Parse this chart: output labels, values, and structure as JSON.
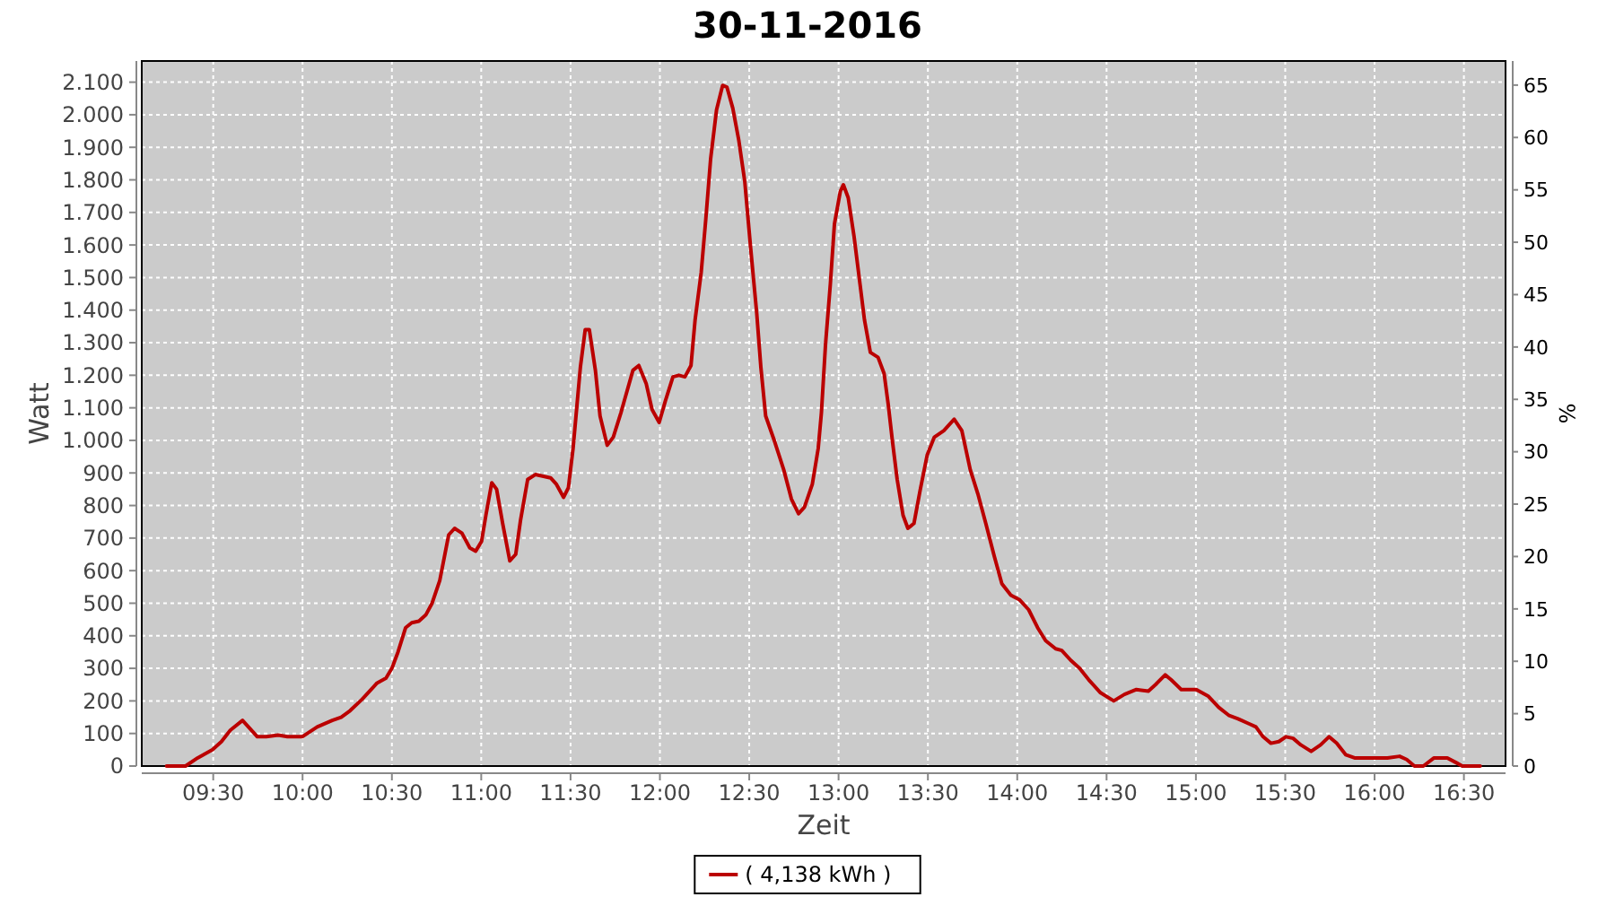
{
  "chart_data": {
    "type": "line",
    "title": "30-11-2016",
    "xlabel": "Zeit",
    "ylabel": "Watt",
    "y2label": "%",
    "xlim": [
      9.1,
      16.733
    ],
    "xticks": [
      {
        "value": 9.5,
        "label": "09:30"
      },
      {
        "value": 10,
        "label": "10:00"
      },
      {
        "value": 10.5,
        "label": "10:30"
      },
      {
        "value": 11,
        "label": "11:00"
      },
      {
        "value": 11.5,
        "label": "11:30"
      },
      {
        "value": 12,
        "label": "12:00"
      },
      {
        "value": 12.5,
        "label": "12:30"
      },
      {
        "value": 13,
        "label": "13:00"
      },
      {
        "value": 13.5,
        "label": "13:30"
      },
      {
        "value": 14,
        "label": "14:00"
      },
      {
        "value": 14.5,
        "label": "14:30"
      },
      {
        "value": 15,
        "label": "15:00"
      },
      {
        "value": 15.5,
        "label": "15:30"
      },
      {
        "value": 16,
        "label": "16:00"
      },
      {
        "value": 16.5,
        "label": "16:30"
      }
    ],
    "ylim": [
      0,
      2165
    ],
    "yticks": [
      0,
      100,
      200,
      300,
      400,
      500,
      600,
      700,
      800,
      900,
      {
        "value": 1000,
        "label": "1.000"
      },
      {
        "value": 1100,
        "label": "1.100"
      },
      {
        "value": 1200,
        "label": "1.200"
      },
      {
        "value": 1300,
        "label": "1.300"
      },
      {
        "value": 1400,
        "label": "1.400"
      },
      {
        "value": 1500,
        "label": "1.500"
      },
      {
        "value": 1600,
        "label": "1.600"
      },
      {
        "value": 1700,
        "label": "1.700"
      },
      {
        "value": 1800,
        "label": "1.800"
      },
      {
        "value": 1900,
        "label": "1.900"
      },
      {
        "value": 2000,
        "label": "2.000"
      },
      {
        "value": 2100,
        "label": "2.100"
      }
    ],
    "y2lim": [
      0,
      67.3
    ],
    "y2ticks": [
      0,
      5,
      10,
      15,
      20,
      25,
      30,
      35,
      40,
      45,
      50,
      55,
      60,
      65
    ],
    "grid": true,
    "legend": "bottom",
    "series": [
      {
        "name": "( 4,138 kWh )",
        "color": "#bb0000",
        "x": [
          9.239,
          9.345,
          9.413,
          9.496,
          9.546,
          9.596,
          9.664,
          9.747,
          9.797,
          9.864,
          9.915,
          9.998,
          10.082,
          10.166,
          10.216,
          10.266,
          10.333,
          10.384,
          10.417,
          10.467,
          10.5,
          10.534,
          10.577,
          10.611,
          10.651,
          10.691,
          10.725,
          10.768,
          10.818,
          10.851,
          10.892,
          10.936,
          10.969,
          11.002,
          11.026,
          11.059,
          11.086,
          11.12,
          11.16,
          11.193,
          11.22,
          11.26,
          11.303,
          11.388,
          11.421,
          11.461,
          11.488,
          11.514,
          11.555,
          11.582,
          11.605,
          11.639,
          11.665,
          11.705,
          11.739,
          11.782,
          11.805,
          11.849,
          11.882,
          11.923,
          11.956,
          11.996,
          12.03,
          12.073,
          12.106,
          12.14,
          12.174,
          12.197,
          12.231,
          12.257,
          12.284,
          12.317,
          12.351,
          12.375,
          12.408,
          12.442,
          12.475,
          12.508,
          12.542,
          12.565,
          12.592,
          12.643,
          12.693,
          12.736,
          12.776,
          12.809,
          12.853,
          12.886,
          12.904,
          12.927,
          12.954,
          12.977,
          13.01,
          13.027,
          13.054,
          13.087,
          13.12,
          13.145,
          13.178,
          13.221,
          13.255,
          13.278,
          13.301,
          13.328,
          13.361,
          13.388,
          13.422,
          13.456,
          13.496,
          13.536,
          13.589,
          13.647,
          13.69,
          13.737,
          13.78,
          13.824,
          13.871,
          13.914,
          13.964,
          14.014,
          14.064,
          14.114,
          14.159,
          14.215,
          14.249,
          14.299,
          14.349,
          14.4,
          14.466,
          14.54,
          14.6,
          14.667,
          14.734,
          14.774,
          14.828,
          14.861,
          14.918,
          15.002,
          15.068,
          15.128,
          15.186,
          15.236,
          15.296,
          15.336,
          15.376,
          15.42,
          15.464,
          15.504,
          15.544,
          15.587,
          15.645,
          15.698,
          15.745,
          15.788,
          15.838,
          15.888,
          15.972,
          16.072,
          16.14,
          16.18,
          16.223,
          16.273,
          16.333,
          16.407,
          16.458,
          16.491,
          16.591
        ],
        "values": [
          0,
          0,
          25,
          50,
          75,
          110,
          140,
          90,
          90,
          95,
          90,
          90,
          120,
          140,
          150,
          170,
          205,
          235,
          255,
          270,
          300,
          350,
          425,
          440,
          445,
          465,
          500,
          570,
          710,
          730,
          715,
          670,
          660,
          690,
          770,
          870,
          850,
          745,
          630,
          650,
          755,
          880,
          895,
          885,
          865,
          825,
          855,
          975,
          1225,
          1340,
          1340,
          1215,
          1075,
          985,
          1010,
          1085,
          1130,
          1215,
          1230,
          1175,
          1095,
          1055,
          1120,
          1195,
          1200,
          1195,
          1230,
          1370,
          1515,
          1680,
          1865,
          2015,
          2090,
          2085,
          2020,
          1920,
          1795,
          1590,
          1390,
          1225,
          1075,
          995,
          910,
          820,
          775,
          795,
          865,
          975,
          1085,
          1295,
          1480,
          1665,
          1765,
          1785,
          1745,
          1625,
          1480,
          1370,
          1270,
          1255,
          1205,
          1110,
          1000,
          880,
          770,
          730,
          745,
          845,
          955,
          1010,
          1030,
          1065,
          1030,
          910,
          835,
          745,
          645,
          560,
          525,
          510,
          480,
          425,
          385,
          360,
          355,
          325,
          300,
          265,
          225,
          200,
          220,
          235,
          230,
          250,
          280,
          265,
          235,
          235,
          215,
          180,
          155,
          145,
          130,
          120,
          90,
          70,
          75,
          90,
          85,
          65,
          45,
          65,
          90,
          70,
          35,
          25,
          25,
          25,
          30,
          20,
          0,
          0,
          25,
          25,
          10,
          0,
          0
        ]
      }
    ]
  }
}
